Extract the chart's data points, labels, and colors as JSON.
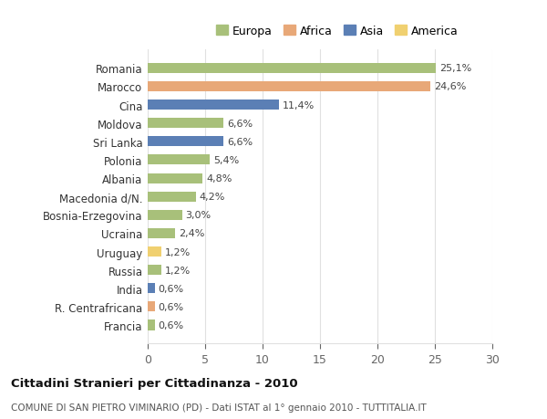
{
  "categories": [
    "Romania",
    "Marocco",
    "Cina",
    "Moldova",
    "Sri Lanka",
    "Polonia",
    "Albania",
    "Macedonia d/N.",
    "Bosnia-Erzegovina",
    "Ucraina",
    "Uruguay",
    "Russia",
    "India",
    "R. Centrafricana",
    "Francia"
  ],
  "values": [
    25.1,
    24.6,
    11.4,
    6.6,
    6.6,
    5.4,
    4.8,
    4.2,
    3.0,
    2.4,
    1.2,
    1.2,
    0.6,
    0.6,
    0.6
  ],
  "labels": [
    "25,1%",
    "24,6%",
    "11,4%",
    "6,6%",
    "6,6%",
    "5,4%",
    "4,8%",
    "4,2%",
    "3,0%",
    "2,4%",
    "1,2%",
    "1,2%",
    "0,6%",
    "0,6%",
    "0,6%"
  ],
  "continents": [
    "Europa",
    "Africa",
    "Asia",
    "Europa",
    "Asia",
    "Europa",
    "Europa",
    "Europa",
    "Europa",
    "Europa",
    "America",
    "Europa",
    "Asia",
    "Africa",
    "Europa"
  ],
  "colors": {
    "Europa": "#a8c07a",
    "Africa": "#e8a878",
    "Asia": "#5b7fb5",
    "America": "#f0d070"
  },
  "xlim": [
    0,
    30
  ],
  "xticks": [
    0,
    5,
    10,
    15,
    20,
    25,
    30
  ],
  "title": "Cittadini Stranieri per Cittadinanza - 2010",
  "subtitle": "COMUNE DI SAN PIETRO VIMINARIO (PD) - Dati ISTAT al 1° gennaio 2010 - TUTTITALIA.IT",
  "background_color": "#ffffff",
  "grid_color": "#e0e0e0"
}
